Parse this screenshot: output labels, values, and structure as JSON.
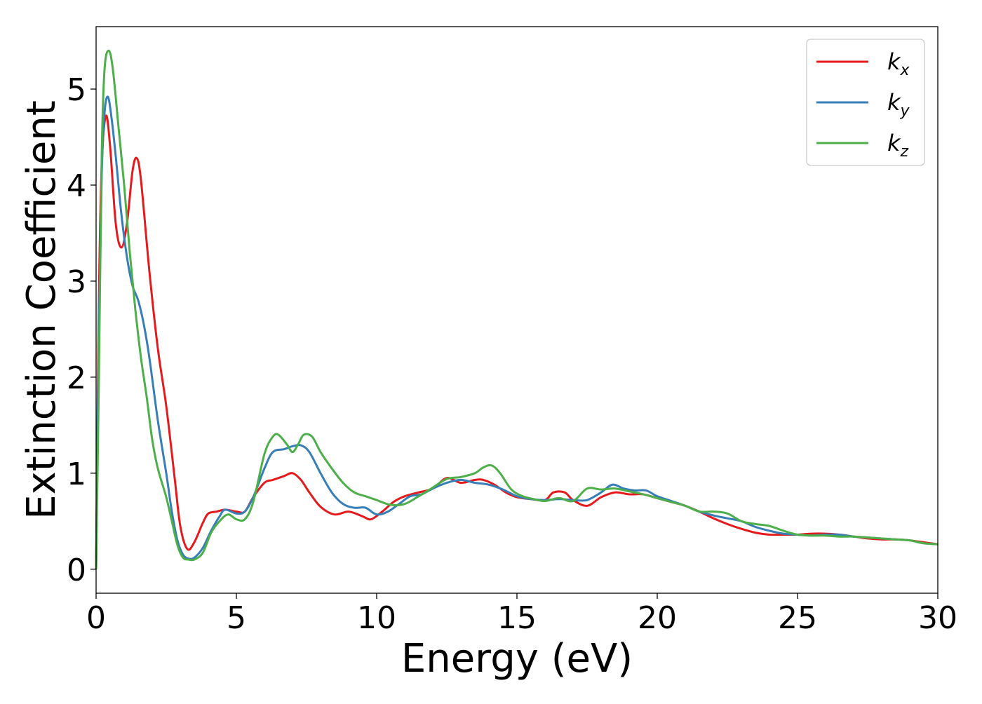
{
  "chart_data": {
    "type": "line",
    "title": "",
    "xlabel": "Energy (eV)",
    "ylabel": "Extinction Coefficient",
    "xlim": [
      0,
      30
    ],
    "ylim": [
      -0.25,
      5.65
    ],
    "xticks": [
      0,
      5,
      10,
      15,
      20,
      25,
      30
    ],
    "yticks": [
      0,
      1,
      2,
      3,
      4,
      5
    ],
    "grid": false,
    "legend_position": "top-right",
    "series": [
      {
        "name": "k",
        "subscript": "x",
        "color": "#e41a1c",
        "x": [
          0.0,
          0.1,
          0.2,
          0.35,
          0.5,
          0.7,
          0.9,
          1.1,
          1.3,
          1.45,
          1.6,
          1.9,
          2.2,
          2.5,
          2.8,
          3.0,
          3.25,
          3.5,
          3.8,
          4.0,
          4.3,
          4.6,
          5.0,
          5.3,
          5.6,
          6.0,
          6.3,
          6.7,
          7.0,
          7.3,
          7.6,
          8.0,
          8.5,
          9.0,
          9.5,
          9.8,
          10.2,
          10.6,
          11.0,
          11.5,
          12.0,
          12.5,
          13.0,
          13.5,
          13.8,
          14.2,
          14.6,
          15.0,
          15.5,
          16.0,
          16.3,
          16.7,
          17.0,
          17.5,
          18.0,
          18.5,
          19.0,
          19.5,
          20.0,
          20.5,
          21.0,
          21.5,
          22.0,
          22.5,
          23.0,
          23.5,
          24.0,
          24.5,
          25.0,
          25.5,
          26.0,
          26.5,
          27.0,
          27.5,
          28.0,
          28.5,
          29.0,
          29.5,
          30.0
        ],
        "values": [
          0.0,
          2.8,
          4.2,
          4.72,
          4.4,
          3.6,
          3.35,
          3.6,
          4.15,
          4.28,
          4.05,
          3.1,
          2.3,
          1.7,
          0.95,
          0.45,
          0.21,
          0.28,
          0.48,
          0.58,
          0.6,
          0.62,
          0.6,
          0.6,
          0.75,
          0.9,
          0.93,
          0.97,
          1.0,
          0.93,
          0.8,
          0.65,
          0.57,
          0.6,
          0.55,
          0.52,
          0.6,
          0.7,
          0.76,
          0.8,
          0.84,
          0.95,
          0.9,
          0.93,
          0.93,
          0.88,
          0.8,
          0.75,
          0.73,
          0.72,
          0.8,
          0.8,
          0.72,
          0.66,
          0.75,
          0.8,
          0.78,
          0.78,
          0.74,
          0.7,
          0.66,
          0.6,
          0.53,
          0.47,
          0.42,
          0.38,
          0.36,
          0.36,
          0.36,
          0.37,
          0.37,
          0.36,
          0.34,
          0.32,
          0.31,
          0.31,
          0.3,
          0.28,
          0.26
        ]
      },
      {
        "name": "k",
        "subscript": "y",
        "color": "#377eb8",
        "x": [
          0.0,
          0.1,
          0.2,
          0.3,
          0.42,
          0.55,
          0.7,
          0.9,
          1.1,
          1.3,
          1.5,
          1.7,
          1.9,
          2.2,
          2.5,
          2.7,
          2.9,
          3.1,
          3.3,
          3.5,
          3.8,
          4.1,
          4.4,
          4.6,
          5.0,
          5.3,
          5.6,
          6.0,
          6.3,
          6.7,
          7.0,
          7.3,
          7.6,
          8.0,
          8.4,
          8.8,
          9.2,
          9.6,
          10.0,
          10.4,
          10.8,
          11.2,
          11.6,
          12.0,
          12.5,
          13.0,
          13.5,
          14.0,
          14.5,
          15.0,
          15.5,
          16.0,
          16.5,
          17.0,
          17.5,
          18.0,
          18.4,
          18.8,
          19.2,
          19.6,
          20.0,
          20.5,
          21.0,
          21.5,
          22.0,
          22.5,
          23.0,
          23.5,
          24.0,
          24.5,
          25.0,
          25.5,
          26.0,
          26.5,
          27.0,
          27.5,
          28.0,
          28.5,
          29.0,
          29.5,
          30.0
        ],
        "values": [
          0.0,
          2.5,
          4.1,
          4.75,
          4.92,
          4.7,
          4.3,
          3.7,
          3.25,
          2.95,
          2.8,
          2.55,
          2.2,
          1.55,
          1.0,
          0.6,
          0.3,
          0.15,
          0.11,
          0.12,
          0.22,
          0.4,
          0.55,
          0.62,
          0.58,
          0.6,
          0.75,
          1.05,
          1.22,
          1.25,
          1.28,
          1.29,
          1.22,
          1.0,
          0.8,
          0.68,
          0.64,
          0.64,
          0.57,
          0.6,
          0.68,
          0.76,
          0.78,
          0.84,
          0.9,
          0.93,
          0.9,
          0.88,
          0.83,
          0.76,
          0.73,
          0.72,
          0.73,
          0.72,
          0.72,
          0.8,
          0.88,
          0.84,
          0.82,
          0.82,
          0.76,
          0.71,
          0.66,
          0.6,
          0.56,
          0.53,
          0.5,
          0.44,
          0.4,
          0.37,
          0.36,
          0.35,
          0.36,
          0.36,
          0.34,
          0.33,
          0.32,
          0.31,
          0.3,
          0.27,
          0.26
        ]
      },
      {
        "name": "k",
        "subscript": "z",
        "color": "#4daf4a",
        "x": [
          0.0,
          0.1,
          0.2,
          0.3,
          0.45,
          0.6,
          0.8,
          1.0,
          1.2,
          1.4,
          1.6,
          1.8,
          2.0,
          2.2,
          2.5,
          2.7,
          2.9,
          3.1,
          3.3,
          3.5,
          3.8,
          4.1,
          4.4,
          4.7,
          5.0,
          5.3,
          5.6,
          6.0,
          6.3,
          6.5,
          6.8,
          7.0,
          7.2,
          7.4,
          7.7,
          8.0,
          8.4,
          8.8,
          9.2,
          9.6,
          10.0,
          10.5,
          11.0,
          11.5,
          12.0,
          12.5,
          13.0,
          13.5,
          13.8,
          14.1,
          14.4,
          14.8,
          15.2,
          15.6,
          16.0,
          16.5,
          17.0,
          17.5,
          18.0,
          18.5,
          19.0,
          19.5,
          20.0,
          20.5,
          21.0,
          21.5,
          22.0,
          22.5,
          23.0,
          23.5,
          24.0,
          24.5,
          25.0,
          25.5,
          26.0,
          26.5,
          27.0,
          27.5,
          28.0,
          28.5,
          29.0,
          29.5,
          30.0
        ],
        "values": [
          0.0,
          2.0,
          4.3,
          5.2,
          5.4,
          5.2,
          4.6,
          4.0,
          3.3,
          2.7,
          2.2,
          1.8,
          1.35,
          1.05,
          0.75,
          0.5,
          0.25,
          0.12,
          0.1,
          0.1,
          0.17,
          0.38,
          0.5,
          0.57,
          0.52,
          0.52,
          0.7,
          1.2,
          1.38,
          1.4,
          1.3,
          1.22,
          1.3,
          1.4,
          1.38,
          1.22,
          1.05,
          0.9,
          0.8,
          0.76,
          0.72,
          0.67,
          0.68,
          0.76,
          0.85,
          0.94,
          0.96,
          1.0,
          1.06,
          1.08,
          1.0,
          0.83,
          0.76,
          0.73,
          0.71,
          0.74,
          0.71,
          0.84,
          0.83,
          0.84,
          0.81,
          0.78,
          0.74,
          0.7,
          0.66,
          0.6,
          0.6,
          0.58,
          0.5,
          0.47,
          0.45,
          0.4,
          0.36,
          0.35,
          0.35,
          0.34,
          0.34,
          0.33,
          0.32,
          0.31,
          0.3,
          0.27,
          0.26
        ]
      }
    ]
  }
}
